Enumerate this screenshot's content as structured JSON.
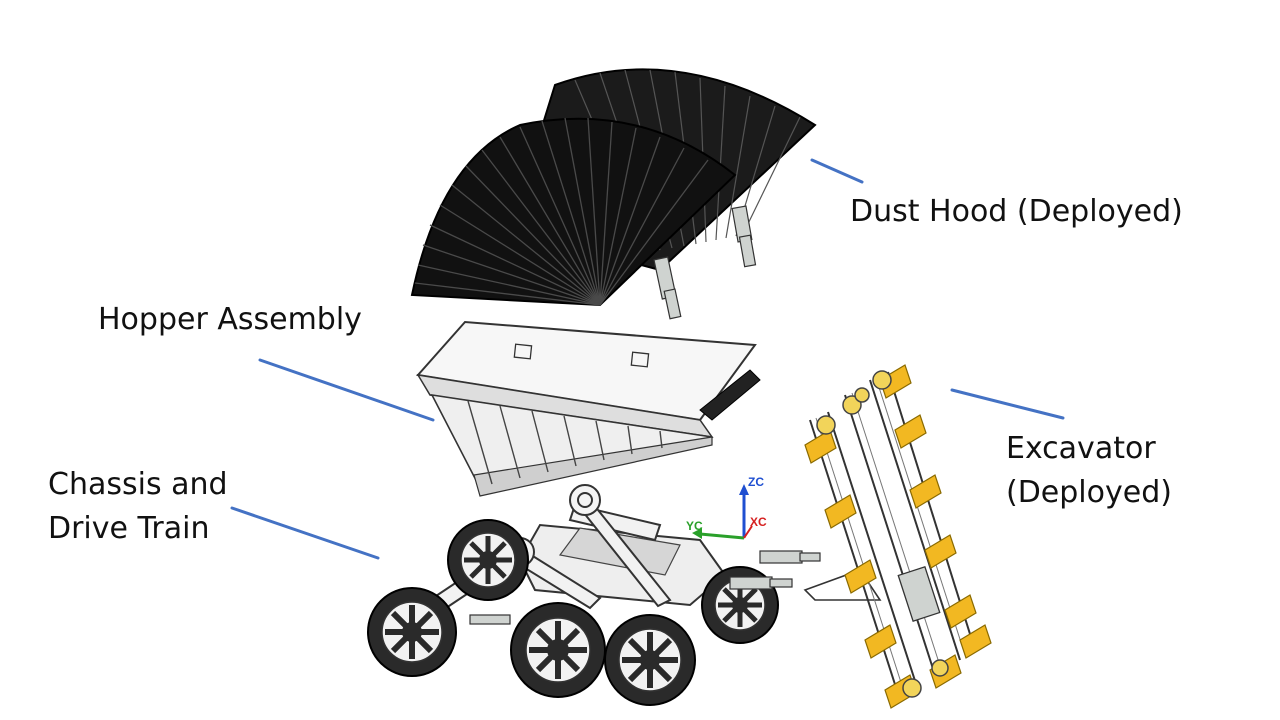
{
  "labels": {
    "dust_hood": "Dust Hood (Deployed)",
    "hopper": "Hopper Assembly",
    "chassis_line1": "Chassis and",
    "chassis_line2": "Drive Train",
    "excavator_line1": "Excavator",
    "excavator_line2": "(Deployed)"
  },
  "axes": {
    "z": "ZC",
    "y": "YC",
    "x": "XC"
  },
  "colors": {
    "leader_line": "#4472c4",
    "hood": "#1b1b1b",
    "hood_rib": "#4a4a4a",
    "part_fill": "#eeeeee",
    "part_stroke": "#3a3a3a",
    "wheel": "#2a2a2a",
    "excavator_bucket": "#f2b822",
    "axis_z": "#1f4fd1",
    "axis_y": "#2aa02a",
    "axis_x": "#d62020"
  }
}
